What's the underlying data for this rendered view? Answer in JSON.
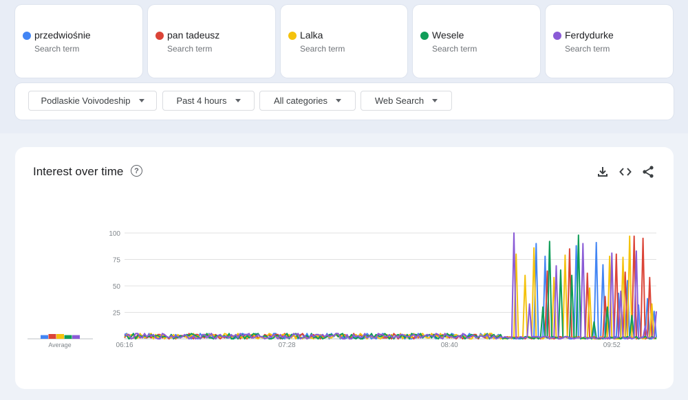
{
  "terms": [
    {
      "name": "przedwiośnie",
      "sub": "Search term",
      "color": "#4285f4"
    },
    {
      "name": "pan tadeusz",
      "sub": "Search term",
      "color": "#db4437"
    },
    {
      "name": "Lalka",
      "sub": "Search term",
      "color": "#f4c20d"
    },
    {
      "name": "Wesele",
      "sub": "Search term",
      "color": "#0f9d58"
    },
    {
      "name": "Ferdydurke",
      "sub": "Search term",
      "color": "#8a5bd6"
    }
  ],
  "filters": {
    "region": "Podlaskie Voivodeship",
    "time": "Past 4 hours",
    "category": "All categories",
    "property": "Web Search"
  },
  "card": {
    "title": "Interest over time",
    "help_icon": "help-circle-icon",
    "download_icon": "download-icon",
    "embed_icon": "code-icon",
    "share_icon": "share-icon"
  },
  "chart_data": {
    "type": "line",
    "y_ticks": [
      "100",
      "75",
      "50",
      "25"
    ],
    "x_ticks": [
      "06:16",
      "07:28",
      "08:40",
      "09:52"
    ],
    "ylim": [
      0,
      100
    ],
    "n_points": 240,
    "average_label": "Average",
    "averages": [
      3,
      5,
      5,
      3,
      3
    ],
    "series": [
      {
        "name": "przedwiośnie",
        "color": "#4285f4",
        "spikes": [
          [
            185,
            90
          ],
          [
            189,
            78
          ],
          [
            203,
            88
          ],
          [
            212,
            91
          ],
          [
            215,
            70
          ],
          [
            222,
            43
          ],
          [
            226,
            55
          ],
          [
            231,
            32
          ],
          [
            235,
            38
          ],
          [
            238,
            26
          ]
        ]
      },
      {
        "name": "pan tadeusz",
        "color": "#db4437",
        "spikes": [
          [
            190,
            64
          ],
          [
            200,
            85
          ],
          [
            208,
            62
          ],
          [
            216,
            40
          ],
          [
            221,
            80
          ],
          [
            225,
            63
          ],
          [
            229,
            97
          ],
          [
            233,
            95
          ],
          [
            236,
            58
          ]
        ]
      },
      {
        "name": "Lalka",
        "color": "#f4c20d",
        "spikes": [
          [
            176,
            80
          ],
          [
            180,
            60
          ],
          [
            184,
            86
          ],
          [
            193,
            58
          ],
          [
            198,
            79
          ],
          [
            209,
            48
          ],
          [
            218,
            78
          ],
          [
            224,
            77
          ],
          [
            227,
            97
          ],
          [
            237,
            33
          ]
        ]
      },
      {
        "name": "Wesele",
        "color": "#0f9d58",
        "spikes": [
          [
            188,
            30
          ],
          [
            191,
            92
          ],
          [
            196,
            65
          ],
          [
            201,
            60
          ],
          [
            204,
            98
          ],
          [
            211,
            16
          ],
          [
            217,
            30
          ],
          [
            228,
            22
          ]
        ]
      },
      {
        "name": "Ferdydurke",
        "color": "#8a5bd6",
        "spikes": [
          [
            175,
            100
          ],
          [
            182,
            33
          ],
          [
            194,
            69
          ],
          [
            206,
            90
          ],
          [
            219,
            81
          ],
          [
            223,
            45
          ],
          [
            230,
            83
          ],
          [
            234,
            12
          ],
          [
            239,
            26
          ]
        ]
      }
    ]
  }
}
